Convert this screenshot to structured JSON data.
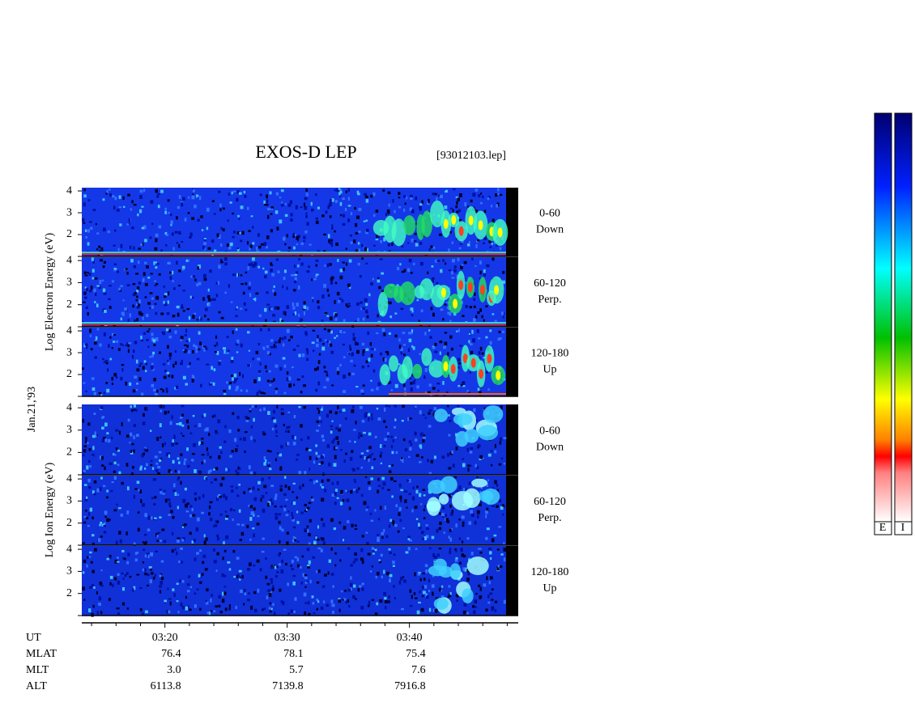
{
  "chart_data": {
    "type": "spectrogram",
    "title": "EXOS-D LEP",
    "file_label": "[93012103.lep]",
    "date_label": "Jan.21,'93",
    "xlim": [
      193.2,
      228.9
    ],
    "xticks": [
      {
        "value": 200,
        "label": "03:20"
      },
      {
        "value": 210,
        "label": "03:30"
      },
      {
        "value": 220,
        "label": "03:40"
      }
    ],
    "xminorticks": [
      194,
      196,
      198,
      202,
      204,
      206,
      208,
      212,
      214,
      216,
      218,
      222,
      224,
      226,
      228
    ],
    "ylim": [
      1,
      4.15
    ],
    "yticks": [
      2,
      3,
      4
    ],
    "yminorticks": [
      1
    ],
    "groups": [
      {
        "ylabel": "Log Electron Energy (eV)",
        "panels": [
          {
            "angle": "0-60",
            "direction": "Down"
          },
          {
            "angle": "60-120",
            "direction": "Perp."
          },
          {
            "angle": "120-180",
            "direction": "Up"
          }
        ]
      },
      {
        "ylabel": "Log Ion Energy (eV)",
        "panels": [
          {
            "angle": "0-60",
            "direction": "Down"
          },
          {
            "angle": "60-120",
            "direction": "Perp."
          },
          {
            "angle": "120-180",
            "direction": "Up"
          }
        ]
      }
    ],
    "ephemeris": {
      "x_label": "UT",
      "rows": [
        {
          "label": "MLAT",
          "values": [
            "76.4",
            "78.1",
            "75.4"
          ]
        },
        {
          "label": "MLT",
          "values": [
            "3.0",
            "5.7",
            "7.6"
          ]
        },
        {
          "label": "ALT",
          "values": [
            "6113.8",
            "7139.8",
            "7916.8"
          ]
        }
      ]
    },
    "colorbars": [
      "E",
      "I"
    ]
  }
}
